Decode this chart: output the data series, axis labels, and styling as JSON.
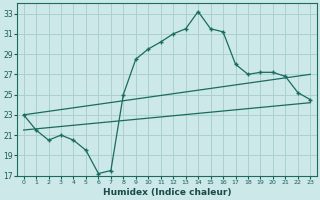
{
  "xlabel": "Humidex (Indice chaleur)",
  "bg_color": "#cce8e8",
  "grid_color": "#aad0d0",
  "line_color": "#1a6b60",
  "xlim": [
    -0.5,
    23.5
  ],
  "ylim": [
    17,
    34
  ],
  "xticks": [
    0,
    1,
    2,
    3,
    4,
    5,
    6,
    7,
    8,
    9,
    10,
    11,
    12,
    13,
    14,
    15,
    16,
    17,
    18,
    19,
    20,
    21,
    22,
    23
  ],
  "yticks": [
    17,
    19,
    21,
    23,
    25,
    27,
    29,
    31,
    33
  ],
  "series1": [
    [
      0,
      23
    ],
    [
      1,
      21.5
    ],
    [
      2,
      20.5
    ],
    [
      3,
      21.0
    ],
    [
      4,
      20.5
    ],
    [
      5,
      19.5
    ],
    [
      6,
      17.2
    ],
    [
      7,
      17.5
    ],
    [
      8,
      25.0
    ],
    [
      9,
      28.5
    ],
    [
      10,
      29.5
    ],
    [
      11,
      30.2
    ],
    [
      12,
      31.0
    ],
    [
      13,
      31.5
    ],
    [
      14,
      33.2
    ],
    [
      15,
      31.5
    ],
    [
      16,
      31.2
    ],
    [
      17,
      28.0
    ],
    [
      18,
      27.0
    ],
    [
      19,
      27.2
    ],
    [
      20,
      27.2
    ],
    [
      21,
      26.8
    ],
    [
      22,
      25.2
    ],
    [
      23,
      24.5
    ]
  ],
  "series2": [
    [
      0,
      23.0
    ],
    [
      23,
      27.0
    ]
  ],
  "series3": [
    [
      0,
      21.5
    ],
    [
      23,
      24.2
    ]
  ]
}
